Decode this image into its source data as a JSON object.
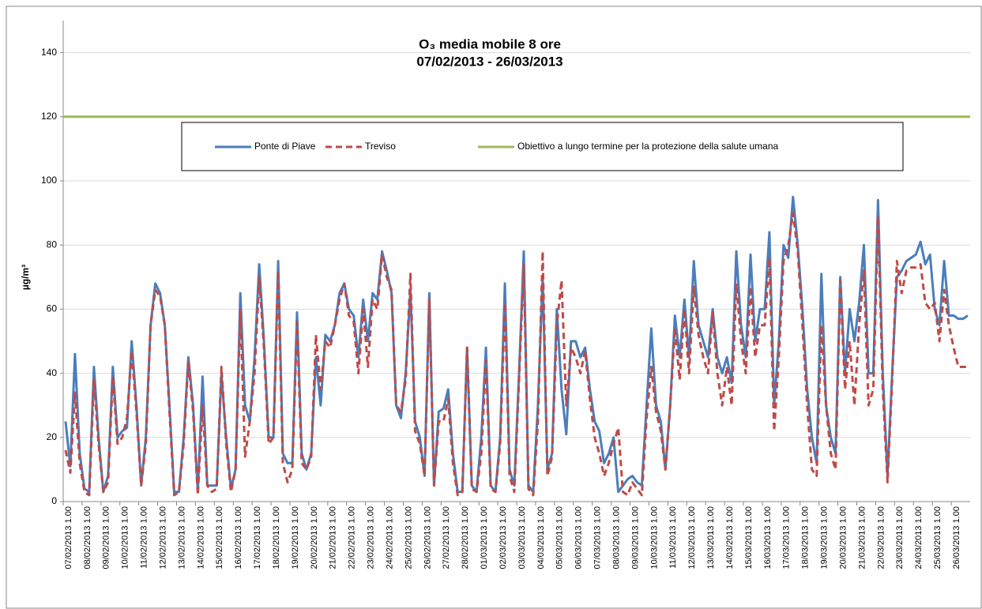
{
  "chart_data": {
    "type": "line",
    "title": "O₃ media mobile 8 ore",
    "subtitle": "07/02/2013 - 26/03/2013",
    "y_label": "µg/m³",
    "ylim": [
      0,
      150
    ],
    "yticks": [
      0,
      20,
      40,
      60,
      80,
      100,
      120,
      140
    ],
    "grid": true,
    "categories": [
      "07/02/2013 1.00",
      null,
      null,
      null,
      "08/02/2013 1.00",
      null,
      null,
      null,
      "09/02/2013 1.00",
      null,
      null,
      null,
      "10/02/2013 1.00",
      null,
      null,
      null,
      "11/02/2013 1.00",
      null,
      null,
      null,
      "12/02/2013 1.00",
      null,
      null,
      null,
      "13/02/2013 1.00",
      null,
      null,
      null,
      "14/02/2013 1.00",
      null,
      null,
      null,
      "15/02/2013 1.00",
      null,
      null,
      null,
      "16/02/2013 1.00",
      null,
      null,
      null,
      "17/02/2013 1.00",
      null,
      null,
      null,
      "18/02/2013 1.00",
      null,
      null,
      null,
      "19/02/2013 1.00",
      null,
      null,
      null,
      "20/02/2013 1.00",
      null,
      null,
      null,
      "21/02/2013 1.00",
      null,
      null,
      null,
      "22/02/2013 1.00",
      null,
      null,
      null,
      "23/02/2013 1.00",
      null,
      null,
      null,
      "24/02/2013 1.00",
      null,
      null,
      null,
      "25/02/2013 1.00",
      null,
      null,
      null,
      "26/02/2013 1.00",
      null,
      null,
      null,
      "27/02/2013 1.00",
      null,
      null,
      null,
      "28/02/2013 1.00",
      null,
      null,
      null,
      "01/03/2013 1.00",
      null,
      null,
      null,
      "02/03/2013 1.00",
      null,
      null,
      null,
      "03/03/2013 1.00",
      null,
      null,
      null,
      "04/03/2013 1.00",
      null,
      null,
      null,
      "05/03/2013 1.00",
      null,
      null,
      null,
      "06/03/2013 1.00",
      null,
      null,
      null,
      "07/03/2013 1.00",
      null,
      null,
      null,
      "08/03/2013 1.00",
      null,
      null,
      null,
      "09/03/2013 1.00",
      null,
      null,
      null,
      "10/03/2013 1.00",
      null,
      null,
      null,
      "11/03/2013 1.00",
      null,
      null,
      null,
      "12/03/2013 1.00",
      null,
      null,
      null,
      "13/03/2013 1.00",
      null,
      null,
      null,
      "14/03/2013 1.00",
      null,
      null,
      null,
      "15/03/2013 1.00",
      null,
      null,
      null,
      "16/03/2013 1.00",
      null,
      null,
      null,
      "17/03/2013 1.00",
      null,
      null,
      null,
      "18/03/2013 1.00",
      null,
      null,
      null,
      "19/03/2013 1.00",
      null,
      null,
      null,
      "20/03/2013 1.00",
      null,
      null,
      null,
      "21/03/2013 1.00",
      null,
      null,
      null,
      "22/03/2013 1.00",
      null,
      null,
      null,
      "23/03/2013 1.00",
      null,
      null,
      null,
      "24/03/2013 1.00",
      null,
      null,
      null,
      "25/03/2013 1.00",
      null,
      null,
      null,
      "26/03/2013 1.00",
      null,
      null,
      null
    ],
    "series": [
      {
        "name": "Ponte di Piave",
        "color": "#4a7ebb",
        "dash": false,
        "values": [
          25,
          11,
          46,
          15,
          4,
          3,
          42,
          20,
          3,
          8,
          42,
          20,
          22,
          23,
          50,
          30,
          5,
          20,
          55,
          68,
          65,
          55,
          30,
          3,
          3,
          20,
          45,
          30,
          3,
          39,
          5,
          5,
          5,
          40,
          20,
          4,
          10,
          65,
          30,
          25,
          45,
          74,
          50,
          20,
          20,
          75,
          15,
          12,
          12,
          59,
          15,
          10,
          15,
          45,
          30,
          52,
          50,
          55,
          65,
          68,
          60,
          58,
          45,
          63,
          50,
          65,
          63,
          78,
          72,
          65,
          30,
          26,
          40,
          66,
          25,
          20,
          8,
          65,
          5,
          28,
          29,
          35,
          15,
          3,
          3,
          48,
          5,
          3,
          20,
          48,
          5,
          3,
          20,
          68,
          10,
          5,
          40,
          78,
          5,
          3,
          30,
          70,
          10,
          15,
          60,
          35,
          21,
          50,
          50,
          45,
          48,
          35,
          25,
          22,
          12,
          15,
          20,
          3,
          5,
          7,
          8,
          6,
          5,
          30,
          54,
          30,
          25,
          10,
          30,
          58,
          45,
          63,
          45,
          75,
          55,
          50,
          45,
          60,
          45,
          40,
          45,
          37,
          78,
          55,
          45,
          77,
          50,
          60,
          60,
          84,
          30,
          50,
          80,
          76,
          95,
          80,
          60,
          35,
          20,
          12,
          71,
          30,
          20,
          15,
          70,
          40,
          60,
          50,
          62,
          80,
          40,
          40,
          94,
          40,
          8,
          40,
          70,
          72,
          75,
          76,
          77,
          81,
          74,
          77,
          60,
          55,
          75,
          58,
          58,
          57,
          57,
          58
        ]
      },
      {
        "name": "Treviso",
        "color": "#be4b48",
        "dash": true,
        "values": [
          16,
          9,
          34,
          12,
          3,
          2,
          38,
          18,
          3,
          6,
          39,
          18,
          20,
          26,
          47,
          28,
          5,
          18,
          55,
          66,
          64,
          55,
          28,
          2,
          3,
          18,
          44,
          28,
          2,
          30,
          5,
          3,
          4,
          42,
          18,
          3,
          10,
          60,
          14,
          25,
          40,
          70,
          48,
          18,
          20,
          72,
          12,
          6,
          10,
          56,
          12,
          10,
          14,
          52,
          35,
          50,
          48,
          55,
          63,
          68,
          58,
          56,
          40,
          60,
          42,
          63,
          60,
          77,
          70,
          66,
          30,
          28,
          38,
          71,
          22,
          18,
          8,
          63,
          5,
          25,
          25,
          32,
          12,
          2,
          3,
          48,
          4,
          3,
          15,
          44,
          4,
          3,
          18,
          62,
          8,
          3,
          38,
          74,
          4,
          2,
          25,
          78,
          8,
          14,
          55,
          69,
          30,
          48,
          45,
          40,
          47,
          32,
          20,
          15,
          8,
          12,
          18,
          23,
          3,
          2,
          6,
          4,
          2,
          26,
          42,
          28,
          22,
          10,
          30,
          54,
          38,
          60,
          40,
          67,
          52,
          45,
          40,
          59,
          40,
          30,
          42,
          30,
          68,
          50,
          40,
          67,
          45,
          55,
          55,
          76,
          22,
          45,
          75,
          80,
          90,
          78,
          55,
          30,
          10,
          8,
          55,
          30,
          15,
          10,
          69,
          35,
          50,
          30,
          55,
          72,
          30,
          35,
          89,
          35,
          6,
          38,
          75,
          65,
          72,
          73,
          73,
          74,
          62,
          60,
          62,
          50,
          66,
          55,
          48,
          42,
          42,
          42
        ]
      }
    ],
    "reference_line": {
      "name": "Obiettivo a lungo termine per la protezione della salute umana",
      "color": "#9bbb59",
      "value": 120
    }
  }
}
